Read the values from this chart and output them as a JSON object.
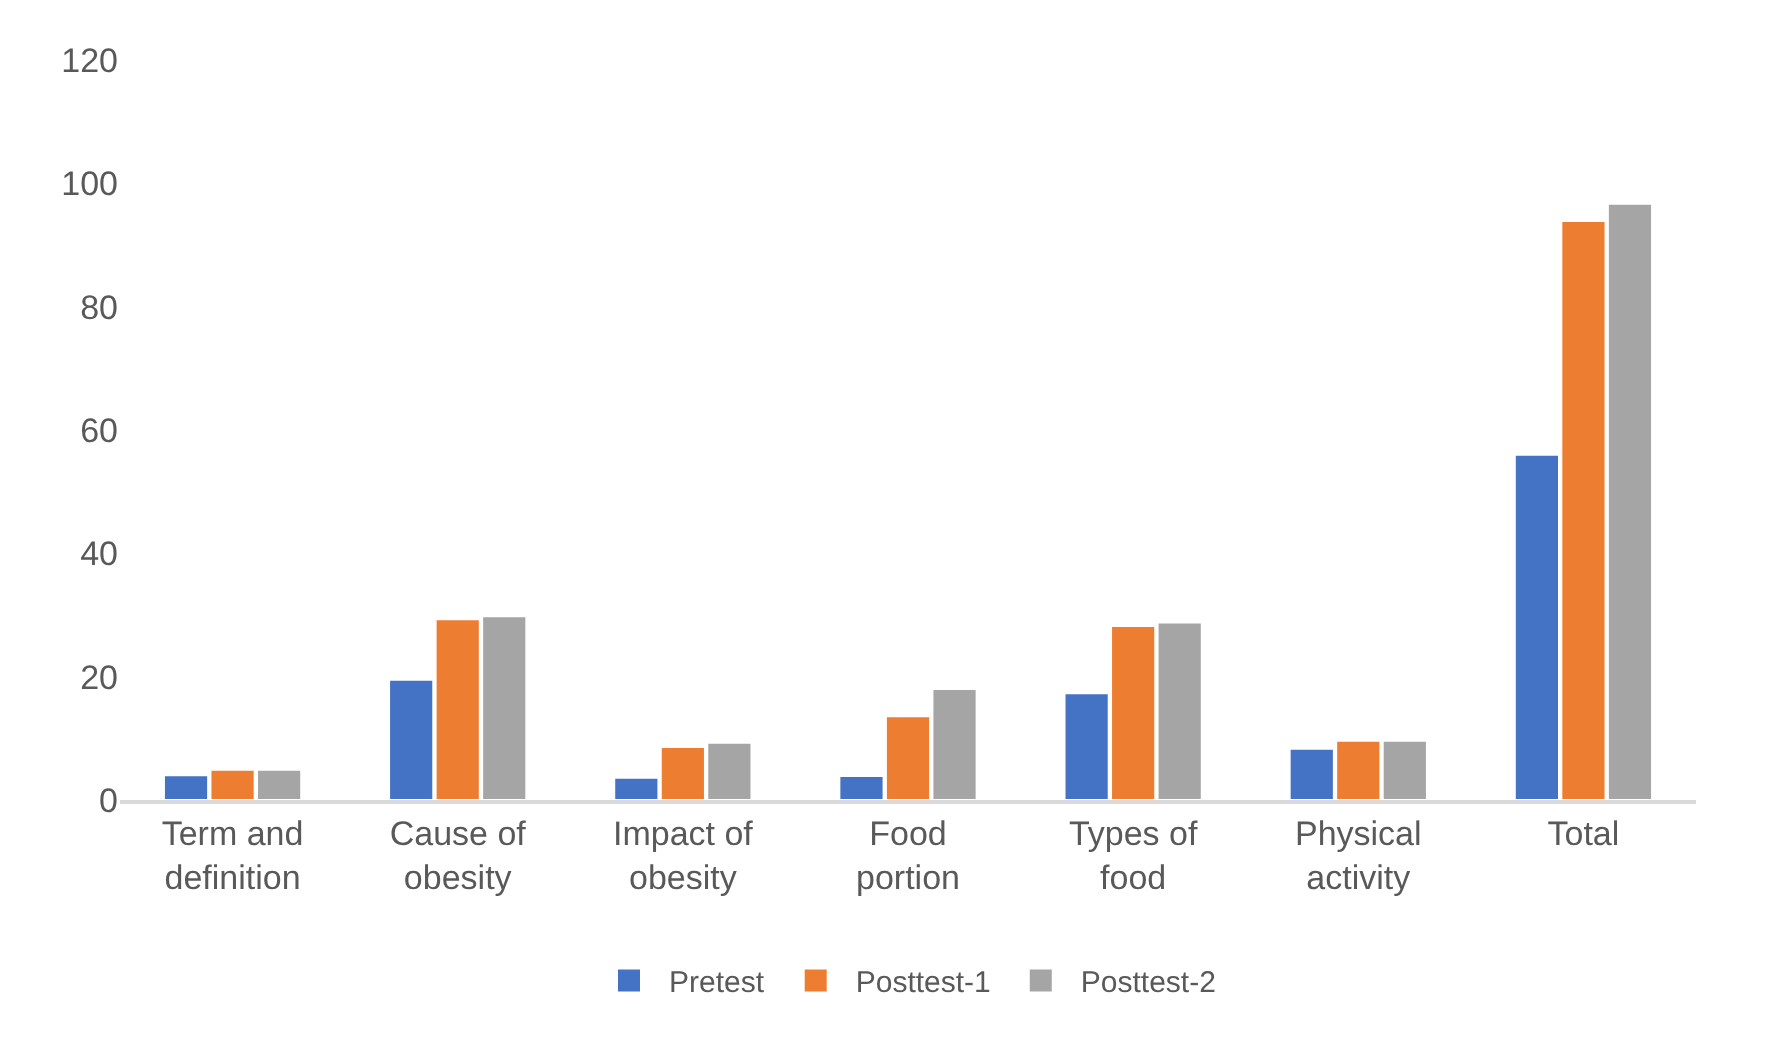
{
  "chart_data": {
    "type": "bar",
    "categories": [
      "Term and definition",
      "Cause of obesity",
      "Impact of obesity",
      "Food portion",
      "Types of food",
      "Physical activity",
      "Total"
    ],
    "series": [
      {
        "name": "Pretest",
        "color": "#4472c4",
        "values": [
          4,
          19.5,
          3.6,
          3.9,
          17.3,
          8.3,
          56
        ]
      },
      {
        "name": "Posttest-1",
        "color": "#ed7d31",
        "values": [
          4.9,
          29.3,
          8.6,
          13.6,
          28.2,
          9.6,
          93.9
        ]
      },
      {
        "name": "Posttest-2",
        "color": "#a5a5a5",
        "values": [
          4.9,
          29.8,
          9.3,
          18,
          28.8,
          9.6,
          96.7
        ]
      }
    ],
    "ylim": [
      0,
      120
    ],
    "yticks": [
      0,
      20,
      40,
      60,
      80,
      100,
      120
    ],
    "grid": false,
    "legend": "bottom"
  }
}
